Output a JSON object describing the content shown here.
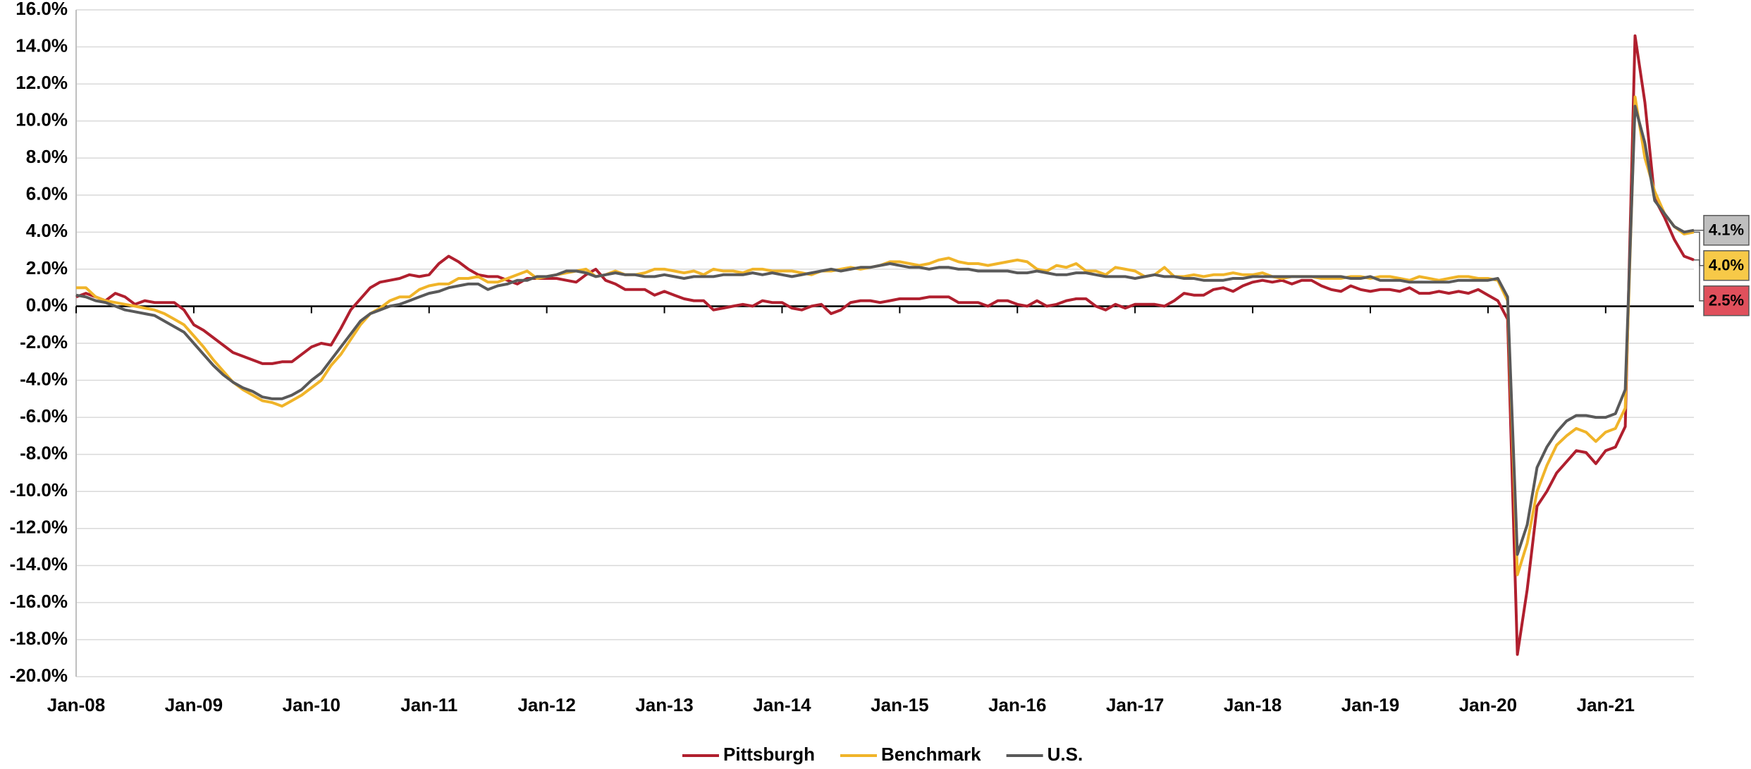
{
  "chart_data": {
    "type": "line",
    "categories": [
      "Jan-08",
      null,
      null,
      null,
      null,
      null,
      null,
      null,
      null,
      null,
      null,
      null,
      "Jan-09",
      null,
      null,
      null,
      null,
      null,
      null,
      null,
      null,
      null,
      null,
      null,
      "Jan-10",
      null,
      null,
      null,
      null,
      null,
      null,
      null,
      null,
      null,
      null,
      null,
      "Jan-11",
      null,
      null,
      null,
      null,
      null,
      null,
      null,
      null,
      null,
      null,
      null,
      "Jan-12",
      null,
      null,
      null,
      null,
      null,
      null,
      null,
      null,
      null,
      null,
      null,
      "Jan-13",
      null,
      null,
      null,
      null,
      null,
      null,
      null,
      null,
      null,
      null,
      null,
      "Jan-14",
      null,
      null,
      null,
      null,
      null,
      null,
      null,
      null,
      null,
      null,
      null,
      "Jan-15",
      null,
      null,
      null,
      null,
      null,
      null,
      null,
      null,
      null,
      null,
      null,
      "Jan-16",
      null,
      null,
      null,
      null,
      null,
      null,
      null,
      null,
      null,
      null,
      null,
      "Jan-17",
      null,
      null,
      null,
      null,
      null,
      null,
      null,
      null,
      null,
      null,
      null,
      "Jan-18",
      null,
      null,
      null,
      null,
      null,
      null,
      null,
      null,
      null,
      null,
      null,
      "Jan-19",
      null,
      null,
      null,
      null,
      null,
      null,
      null,
      null,
      null,
      null,
      null,
      "Jan-20",
      null,
      null,
      null,
      null,
      null,
      null,
      null,
      null,
      null,
      null,
      null,
      "Jan-21",
      null,
      null,
      null,
      null,
      null,
      null,
      null,
      null,
      null
    ],
    "series": [
      {
        "name": "Pittsburgh",
        "color": "#b01f2e",
        "end_label": "2.5%",
        "label_color": "#e0505c",
        "values": [
          0.5,
          0.7,
          0.5,
          0.3,
          0.7,
          0.5,
          0.1,
          0.3,
          0.2,
          0.2,
          0.2,
          -0.2,
          -1.0,
          -1.3,
          -1.7,
          -2.1,
          -2.5,
          -2.7,
          -2.9,
          -3.1,
          -3.1,
          -3.0,
          -3.0,
          -2.6,
          -2.2,
          -2.0,
          -2.1,
          -1.2,
          -0.2,
          0.4,
          1.0,
          1.3,
          1.4,
          1.5,
          1.7,
          1.6,
          1.7,
          2.3,
          2.7,
          2.4,
          2.0,
          1.7,
          1.6,
          1.6,
          1.4,
          1.2,
          1.5,
          1.5,
          1.5,
          1.5,
          1.4,
          1.3,
          1.7,
          2.0,
          1.4,
          1.2,
          0.9,
          0.9,
          0.9,
          0.6,
          0.8,
          0.6,
          0.4,
          0.3,
          0.3,
          -0.2,
          -0.1,
          0.0,
          0.1,
          0.0,
          0.3,
          0.2,
          0.2,
          -0.1,
          -0.2,
          0.0,
          0.1,
          -0.4,
          -0.2,
          0.2,
          0.3,
          0.3,
          0.2,
          0.3,
          0.4,
          0.4,
          0.4,
          0.5,
          0.5,
          0.5,
          0.2,
          0.2,
          0.2,
          0.0,
          0.3,
          0.3,
          0.1,
          0.0,
          0.3,
          0.0,
          0.1,
          0.3,
          0.4,
          0.4,
          0.0,
          -0.2,
          0.1,
          -0.1,
          0.1,
          0.1,
          0.1,
          0.0,
          0.3,
          0.7,
          0.6,
          0.6,
          0.9,
          1.0,
          0.8,
          1.1,
          1.3,
          1.4,
          1.3,
          1.4,
          1.2,
          1.4,
          1.4,
          1.1,
          0.9,
          0.8,
          1.1,
          0.9,
          0.8,
          0.9,
          0.9,
          0.8,
          1.0,
          0.7,
          0.7,
          0.8,
          0.7,
          0.8,
          0.7,
          0.9,
          0.6,
          0.3,
          -0.7,
          -18.8,
          -15.3,
          -10.8,
          -10.0,
          -9.0,
          -8.4,
          -7.8,
          -7.9,
          -8.5,
          -7.8,
          -7.6,
          -6.5,
          14.6,
          11.0,
          5.8,
          4.8,
          3.6,
          2.7,
          2.5
        ]
      },
      {
        "name": "Benchmark",
        "color": "#f0b429",
        "end_label": "4.0%",
        "label_color": "#f7c948",
        "values": [
          1.0,
          1.0,
          0.5,
          0.3,
          0.2,
          0.1,
          0.0,
          -0.1,
          -0.2,
          -0.4,
          -0.7,
          -1.0,
          -1.6,
          -2.2,
          -2.9,
          -3.5,
          -4.1,
          -4.5,
          -4.8,
          -5.1,
          -5.2,
          -5.4,
          -5.1,
          -4.8,
          -4.4,
          -4.0,
          -3.2,
          -2.6,
          -1.8,
          -1.0,
          -0.4,
          -0.1,
          0.3,
          0.5,
          0.5,
          0.9,
          1.1,
          1.2,
          1.2,
          1.5,
          1.5,
          1.6,
          1.3,
          1.3,
          1.5,
          1.7,
          1.9,
          1.5,
          1.6,
          1.7,
          1.8,
          1.9,
          2.0,
          1.6,
          1.7,
          1.9,
          1.7,
          1.7,
          1.8,
          2.0,
          2.0,
          1.9,
          1.8,
          1.9,
          1.7,
          2.0,
          1.9,
          1.9,
          1.8,
          2.0,
          2.0,
          1.9,
          1.9,
          1.9,
          1.8,
          1.7,
          1.9,
          1.9,
          2.0,
          2.1,
          2.0,
          2.1,
          2.2,
          2.4,
          2.4,
          2.3,
          2.2,
          2.3,
          2.5,
          2.6,
          2.4,
          2.3,
          2.3,
          2.2,
          2.3,
          2.4,
          2.5,
          2.4,
          2.0,
          1.9,
          2.2,
          2.1,
          2.3,
          1.9,
          1.9,
          1.7,
          2.1,
          2.0,
          1.9,
          1.6,
          1.7,
          2.1,
          1.6,
          1.6,
          1.7,
          1.6,
          1.7,
          1.7,
          1.8,
          1.7,
          1.7,
          1.8,
          1.6,
          1.5,
          1.6,
          1.6,
          1.6,
          1.5,
          1.5,
          1.5,
          1.6,
          1.6,
          1.5,
          1.6,
          1.6,
          1.5,
          1.4,
          1.6,
          1.5,
          1.4,
          1.5,
          1.6,
          1.6,
          1.5,
          1.5,
          1.4,
          0.3,
          -14.5,
          -12.8,
          -10.0,
          -8.6,
          -7.5,
          -7.0,
          -6.6,
          -6.8,
          -7.3,
          -6.8,
          -6.6,
          -5.5,
          11.3,
          8.0,
          6.2,
          5.0,
          4.3,
          3.9,
          4.0
        ]
      },
      {
        "name": "U.S.",
        "color": "#595959",
        "end_label": "4.1%",
        "label_color": "#bfbfbf",
        "values": [
          0.6,
          0.5,
          0.3,
          0.2,
          0.0,
          -0.2,
          -0.3,
          -0.4,
          -0.5,
          -0.8,
          -1.1,
          -1.4,
          -2.0,
          -2.6,
          -3.2,
          -3.7,
          -4.1,
          -4.4,
          -4.6,
          -4.9,
          -5.0,
          -5.0,
          -4.8,
          -4.5,
          -4.0,
          -3.6,
          -2.9,
          -2.2,
          -1.5,
          -0.8,
          -0.4,
          -0.2,
          0.0,
          0.1,
          0.3,
          0.5,
          0.7,
          0.8,
          1.0,
          1.1,
          1.2,
          1.2,
          0.9,
          1.1,
          1.2,
          1.4,
          1.4,
          1.6,
          1.6,
          1.7,
          1.9,
          1.9,
          1.8,
          1.6,
          1.7,
          1.8,
          1.7,
          1.7,
          1.6,
          1.6,
          1.7,
          1.6,
          1.5,
          1.6,
          1.6,
          1.6,
          1.7,
          1.7,
          1.7,
          1.8,
          1.7,
          1.8,
          1.7,
          1.6,
          1.7,
          1.8,
          1.9,
          2.0,
          1.9,
          2.0,
          2.1,
          2.1,
          2.2,
          2.3,
          2.2,
          2.1,
          2.1,
          2.0,
          2.1,
          2.1,
          2.0,
          2.0,
          1.9,
          1.9,
          1.9,
          1.9,
          1.8,
          1.8,
          1.9,
          1.8,
          1.7,
          1.7,
          1.8,
          1.8,
          1.7,
          1.6,
          1.6,
          1.6,
          1.5,
          1.6,
          1.7,
          1.6,
          1.6,
          1.5,
          1.5,
          1.4,
          1.4,
          1.4,
          1.5,
          1.5,
          1.6,
          1.6,
          1.6,
          1.6,
          1.6,
          1.6,
          1.6,
          1.6,
          1.6,
          1.6,
          1.5,
          1.5,
          1.6,
          1.4,
          1.4,
          1.4,
          1.3,
          1.3,
          1.3,
          1.3,
          1.3,
          1.4,
          1.4,
          1.4,
          1.4,
          1.5,
          0.5,
          -13.4,
          -11.8,
          -8.7,
          -7.6,
          -6.8,
          -6.2,
          -5.9,
          -5.9,
          -6.0,
          -6.0,
          -5.8,
          -4.5,
          10.8,
          8.8,
          5.7,
          5.0,
          4.3,
          4.0,
          4.1
        ]
      }
    ],
    "ylim": [
      -20,
      16
    ],
    "yticks": [
      {
        "value": 16,
        "label": "16.0%"
      },
      {
        "value": 14,
        "label": "14.0%"
      },
      {
        "value": 12,
        "label": "12.0%"
      },
      {
        "value": 10,
        "label": "10.0%"
      },
      {
        "value": 8,
        "label": "8.0%"
      },
      {
        "value": 6,
        "label": "6.0%"
      },
      {
        "value": 4,
        "label": "4.0%"
      },
      {
        "value": 2,
        "label": "2.0%"
      },
      {
        "value": 0,
        "label": "0.0%"
      },
      {
        "value": -2,
        "label": "-2.0%"
      },
      {
        "value": -4,
        "label": "-4.0%"
      },
      {
        "value": -6,
        "label": "-6.0%"
      },
      {
        "value": -8,
        "label": "-8.0%"
      },
      {
        "value": -10,
        "label": "-10.0%"
      },
      {
        "value": -12,
        "label": "-12.0%"
      },
      {
        "value": -14,
        "label": "-14.0%"
      },
      {
        "value": -16,
        "label": "-16.0%"
      },
      {
        "value": -18,
        "label": "-18.0%"
      },
      {
        "value": -20,
        "label": "-20.0%"
      }
    ],
    "grid": true,
    "legend": "bottom"
  }
}
